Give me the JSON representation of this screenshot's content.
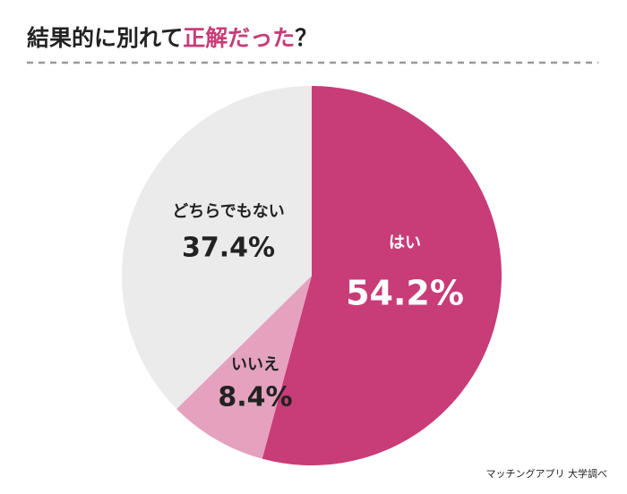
{
  "chart_data": {
    "type": "pie",
    "title_segments": [
      {
        "text": "結果的に別れて",
        "color": "#222222"
      },
      {
        "text": "正解だった",
        "color": "#c83c78"
      },
      {
        "text": "？",
        "color": "#222222"
      }
    ],
    "categories": [
      "はい",
      "いいえ",
      "どちらでもない"
    ],
    "values": [
      54.2,
      8.4,
      37.4
    ],
    "value_labels": [
      "54.2%",
      "8.4%",
      "37.4%"
    ],
    "colors": [
      "#c83c78",
      "#e4a2be",
      "#ebebeb"
    ],
    "label_colors": [
      "#ffffff",
      "#222222",
      "#222222"
    ],
    "source": "マッチングアプリ 大学調べ"
  }
}
